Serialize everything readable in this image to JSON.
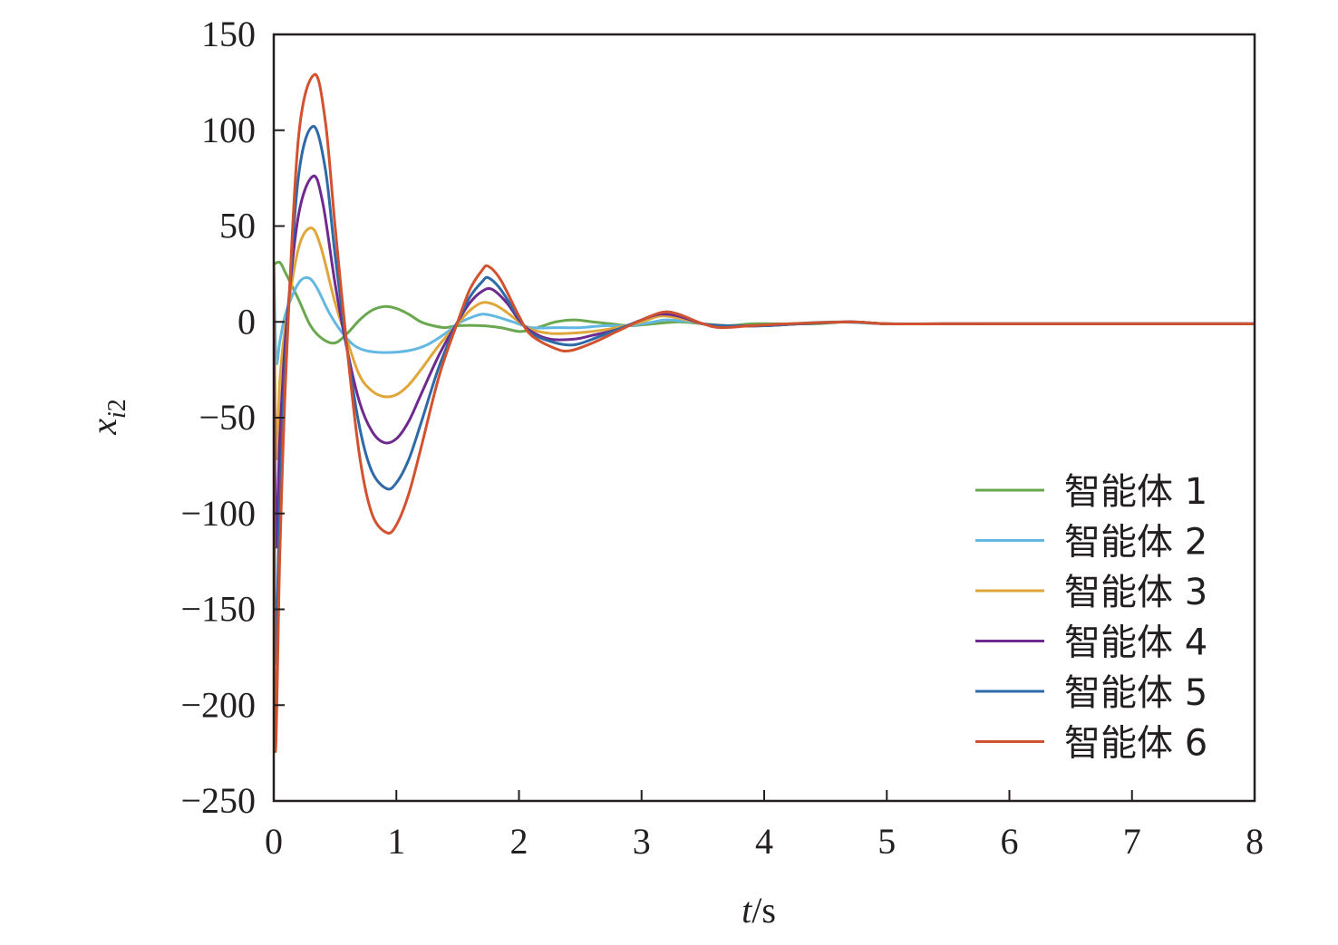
{
  "chart_data": {
    "type": "line",
    "xlabel": "t/s",
    "ylabel": "x_i2",
    "xlim": [
      0,
      8
    ],
    "ylim": [
      -250,
      150
    ],
    "xticks": [
      0,
      1,
      2,
      3,
      4,
      5,
      6,
      7,
      8
    ],
    "yticks": [
      150,
      100,
      50,
      0,
      -50,
      -100,
      -150,
      -200,
      -250
    ],
    "xtick_labels": [
      "0",
      "1",
      "2",
      "3",
      "4",
      "5",
      "6",
      "7",
      "8"
    ],
    "ytick_labels": [
      "150",
      "100",
      "50",
      "0",
      "−50",
      "−100",
      "−150",
      "−200",
      "−250"
    ],
    "grid": false,
    "legend_position": "bottom-right",
    "series": [
      {
        "name": "智能体 1",
        "color": "#6aa84f",
        "points": [
          [
            0,
            30
          ],
          [
            0.05,
            31
          ],
          [
            0.1,
            25
          ],
          [
            0.2,
            12
          ],
          [
            0.3,
            -2
          ],
          [
            0.4,
            -9
          ],
          [
            0.5,
            -11
          ],
          [
            0.6,
            -6
          ],
          [
            0.7,
            1
          ],
          [
            0.8,
            6
          ],
          [
            0.9,
            8
          ],
          [
            1.0,
            7
          ],
          [
            1.1,
            4
          ],
          [
            1.2,
            0
          ],
          [
            1.3,
            -2
          ],
          [
            1.4,
            -3
          ],
          [
            1.5,
            -2
          ],
          [
            1.7,
            -2
          ],
          [
            1.85,
            -3
          ],
          [
            2.0,
            -5
          ],
          [
            2.1,
            -4
          ],
          [
            2.2,
            -2
          ],
          [
            2.3,
            0
          ],
          [
            2.45,
            1
          ],
          [
            2.6,
            0
          ],
          [
            2.75,
            -1
          ],
          [
            2.9,
            -2
          ],
          [
            3.1,
            -1
          ],
          [
            3.3,
            0
          ],
          [
            3.5,
            -1
          ],
          [
            3.7,
            -2
          ],
          [
            3.9,
            -1
          ],
          [
            4.1,
            -1
          ],
          [
            4.4,
            -1
          ],
          [
            4.7,
            0
          ],
          [
            5.0,
            -1
          ],
          [
            5.5,
            -1
          ],
          [
            6.0,
            -1
          ],
          [
            7.0,
            -1
          ],
          [
            8.0,
            -1
          ]
        ]
      },
      {
        "name": "智能体 2",
        "color": "#62b8e0",
        "points": [
          [
            0,
            30
          ],
          [
            0.02,
            -20
          ],
          [
            0.05,
            -10
          ],
          [
            0.1,
            5
          ],
          [
            0.2,
            20
          ],
          [
            0.28,
            23
          ],
          [
            0.35,
            18
          ],
          [
            0.45,
            5
          ],
          [
            0.55,
            -5
          ],
          [
            0.65,
            -12
          ],
          [
            0.75,
            -15
          ],
          [
            0.9,
            -16
          ],
          [
            1.1,
            -15
          ],
          [
            1.25,
            -12
          ],
          [
            1.4,
            -6
          ],
          [
            1.5,
            -1
          ],
          [
            1.6,
            2
          ],
          [
            1.7,
            4
          ],
          [
            1.8,
            3
          ],
          [
            1.95,
            0
          ],
          [
            2.1,
            -3
          ],
          [
            2.3,
            -3
          ],
          [
            2.5,
            -3
          ],
          [
            2.7,
            -2
          ],
          [
            2.9,
            -2
          ],
          [
            3.1,
            0
          ],
          [
            3.2,
            1
          ],
          [
            3.4,
            0
          ],
          [
            3.6,
            -2
          ],
          [
            3.9,
            -2
          ],
          [
            4.2,
            -1
          ],
          [
            4.6,
            0
          ],
          [
            5.0,
            -1
          ],
          [
            6.0,
            -1
          ],
          [
            7.0,
            -1
          ],
          [
            8.0,
            -1
          ]
        ]
      },
      {
        "name": "智能体 3",
        "color": "#e0a63a",
        "points": [
          [
            0,
            30
          ],
          [
            0.02,
            -70
          ],
          [
            0.05,
            -30
          ],
          [
            0.1,
            0
          ],
          [
            0.2,
            38
          ],
          [
            0.3,
            49
          ],
          [
            0.38,
            40
          ],
          [
            0.5,
            10
          ],
          [
            0.6,
            -10
          ],
          [
            0.7,
            -28
          ],
          [
            0.8,
            -36
          ],
          [
            0.9,
            -39
          ],
          [
            1.0,
            -38
          ],
          [
            1.1,
            -33
          ],
          [
            1.2,
            -25
          ],
          [
            1.35,
            -12
          ],
          [
            1.5,
            -1
          ],
          [
            1.6,
            6
          ],
          [
            1.7,
            10
          ],
          [
            1.8,
            9
          ],
          [
            1.9,
            5
          ],
          [
            2.0,
            0
          ],
          [
            2.1,
            -4
          ],
          [
            2.25,
            -6
          ],
          [
            2.4,
            -6
          ],
          [
            2.6,
            -5
          ],
          [
            2.8,
            -3
          ],
          [
            3.0,
            0
          ],
          [
            3.15,
            3
          ],
          [
            3.3,
            2
          ],
          [
            3.5,
            -1
          ],
          [
            3.7,
            -2
          ],
          [
            4.0,
            -2
          ],
          [
            4.3,
            -1
          ],
          [
            4.7,
            0
          ],
          [
            5.0,
            -1
          ],
          [
            5.5,
            -1
          ],
          [
            6.5,
            -1
          ],
          [
            8.0,
            -1
          ]
        ]
      },
      {
        "name": "智能体 4",
        "color": "#6e2a8e",
        "points": [
          [
            0,
            30
          ],
          [
            0.015,
            -115
          ],
          [
            0.05,
            -60
          ],
          [
            0.1,
            -5
          ],
          [
            0.2,
            55
          ],
          [
            0.32,
            76
          ],
          [
            0.4,
            62
          ],
          [
            0.5,
            20
          ],
          [
            0.6,
            -15
          ],
          [
            0.7,
            -42
          ],
          [
            0.8,
            -57
          ],
          [
            0.9,
            -63
          ],
          [
            1.0,
            -61
          ],
          [
            1.1,
            -52
          ],
          [
            1.2,
            -38
          ],
          [
            1.35,
            -17
          ],
          [
            1.5,
            0
          ],
          [
            1.6,
            10
          ],
          [
            1.7,
            16
          ],
          [
            1.78,
            17
          ],
          [
            1.9,
            10
          ],
          [
            2.0,
            1
          ],
          [
            2.1,
            -5
          ],
          [
            2.25,
            -9
          ],
          [
            2.45,
            -9
          ],
          [
            2.6,
            -7
          ],
          [
            2.8,
            -4
          ],
          [
            3.0,
            1
          ],
          [
            3.15,
            4
          ],
          [
            3.3,
            3
          ],
          [
            3.5,
            -1
          ],
          [
            3.7,
            -2
          ],
          [
            4.0,
            -2
          ],
          [
            4.3,
            -1
          ],
          [
            4.7,
            0
          ],
          [
            5.0,
            -1
          ],
          [
            5.5,
            -1
          ],
          [
            6.5,
            -1
          ],
          [
            8.0,
            -1
          ]
        ]
      },
      {
        "name": "智能体 5",
        "color": "#2e6aa8",
        "points": [
          [
            0,
            30
          ],
          [
            0.01,
            -175
          ],
          [
            0.05,
            -95
          ],
          [
            0.1,
            -15
          ],
          [
            0.2,
            75
          ],
          [
            0.32,
            102
          ],
          [
            0.42,
            80
          ],
          [
            0.5,
            35
          ],
          [
            0.6,
            -15
          ],
          [
            0.7,
            -55
          ],
          [
            0.8,
            -78
          ],
          [
            0.92,
            -87
          ],
          [
            1.0,
            -84
          ],
          [
            1.1,
            -72
          ],
          [
            1.2,
            -53
          ],
          [
            1.35,
            -23
          ],
          [
            1.5,
            0
          ],
          [
            1.6,
            13
          ],
          [
            1.7,
            21
          ],
          [
            1.75,
            23
          ],
          [
            1.85,
            17
          ],
          [
            2.0,
            2
          ],
          [
            2.1,
            -6
          ],
          [
            2.3,
            -11
          ],
          [
            2.45,
            -12
          ],
          [
            2.6,
            -9
          ],
          [
            2.8,
            -4
          ],
          [
            3.0,
            1
          ],
          [
            3.17,
            5
          ],
          [
            3.3,
            4
          ],
          [
            3.5,
            -1
          ],
          [
            3.7,
            -2
          ],
          [
            4.0,
            -2
          ],
          [
            4.3,
            -1
          ],
          [
            4.7,
            0
          ],
          [
            5.0,
            -1
          ],
          [
            5.5,
            -1
          ],
          [
            6.5,
            -1
          ],
          [
            8.0,
            -1
          ]
        ]
      },
      {
        "name": "智能体 6",
        "color": "#d2512e",
        "points": [
          [
            0,
            30
          ],
          [
            0.01,
            -220
          ],
          [
            0.05,
            -120
          ],
          [
            0.1,
            -25
          ],
          [
            0.2,
            95
          ],
          [
            0.33,
            129
          ],
          [
            0.42,
            105
          ],
          [
            0.5,
            50
          ],
          [
            0.6,
            -15
          ],
          [
            0.7,
            -70
          ],
          [
            0.8,
            -100
          ],
          [
            0.92,
            -110
          ],
          [
            1.0,
            -106
          ],
          [
            1.1,
            -90
          ],
          [
            1.2,
            -66
          ],
          [
            1.35,
            -28
          ],
          [
            1.5,
            0
          ],
          [
            1.6,
            17
          ],
          [
            1.7,
            27
          ],
          [
            1.75,
            29
          ],
          [
            1.85,
            22
          ],
          [
            2.0,
            3
          ],
          [
            2.1,
            -7
          ],
          [
            2.3,
            -14
          ],
          [
            2.42,
            -15
          ],
          [
            2.6,
            -11
          ],
          [
            2.8,
            -5
          ],
          [
            3.0,
            1
          ],
          [
            3.17,
            5
          ],
          [
            3.3,
            4
          ],
          [
            3.5,
            -1
          ],
          [
            3.65,
            -3
          ],
          [
            3.9,
            -2
          ],
          [
            4.2,
            -1
          ],
          [
            4.7,
            0
          ],
          [
            5.0,
            -1
          ],
          [
            5.5,
            -1
          ],
          [
            6.5,
            -1
          ],
          [
            8.0,
            -1
          ]
        ]
      }
    ]
  }
}
